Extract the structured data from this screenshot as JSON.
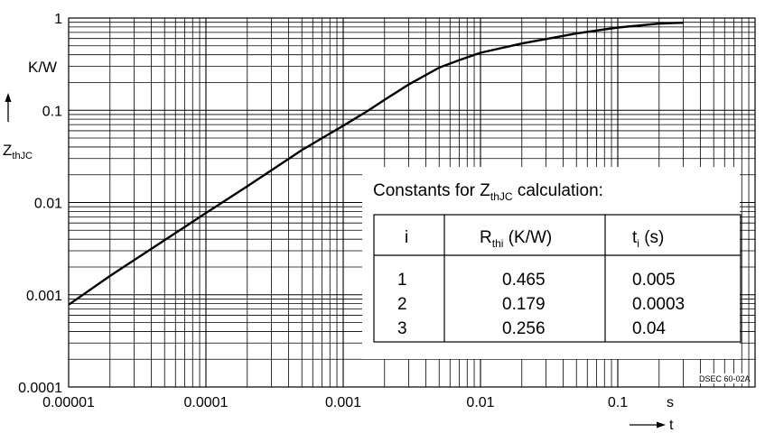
{
  "chart_data": {
    "type": "line",
    "x_scale": "log",
    "y_scale": "log",
    "xlim": [
      1e-05,
      1
    ],
    "ylim": [
      0.0001,
      1
    ],
    "x_ticks": [
      {
        "value": 1e-05,
        "label": "0.00001"
      },
      {
        "value": 0.0001,
        "label": "0.0001"
      },
      {
        "value": 0.001,
        "label": "0.001"
      },
      {
        "value": 0.01,
        "label": "0.01"
      },
      {
        "value": 0.1,
        "label": "0.1"
      }
    ],
    "y_ticks": [
      {
        "value": 1,
        "label": "1"
      },
      {
        "value": 0.1,
        "label": "0.1"
      },
      {
        "value": 0.01,
        "label": "0.01"
      },
      {
        "value": 0.001,
        "label": "0.001"
      },
      {
        "value": 0.0001,
        "label": "0.0001"
      }
    ],
    "x_unit": "s",
    "x_symbol": "t",
    "y_unit": "K/W",
    "y_symbol_main": "Z",
    "y_symbol_sub": "thJC",
    "grid": true,
    "series": [
      {
        "x": [
          1e-05,
          2e-05,
          5e-05,
          0.0001,
          0.0002,
          0.0005,
          0.001,
          0.0015,
          0.002,
          0.003,
          0.005,
          0.007,
          0.01,
          0.02,
          0.05,
          0.1,
          0.2,
          0.3
        ],
        "y": [
          0.00078,
          0.0016,
          0.0039,
          0.0077,
          0.015,
          0.037,
          0.068,
          0.098,
          0.13,
          0.19,
          0.29,
          0.35,
          0.42,
          0.53,
          0.68,
          0.79,
          0.87,
          0.89
        ]
      }
    ],
    "table": {
      "title_main": "Constants for Z",
      "title_sub": "thJC",
      "title_rest": " calculation:",
      "headers": [
        {
          "main": "i",
          "sub": "",
          "rest": ""
        },
        {
          "main": "R",
          "sub": "thi",
          "rest": " (K/W)"
        },
        {
          "main": "t",
          "sub": "i",
          "rest": " (s)"
        }
      ],
      "rows": [
        [
          "1",
          "0.465",
          "0.005"
        ],
        [
          "2",
          "0.179",
          "0.0003"
        ],
        [
          "3",
          "0.256",
          "0.04"
        ]
      ]
    },
    "doc_code": "DSEC 60-02A"
  }
}
